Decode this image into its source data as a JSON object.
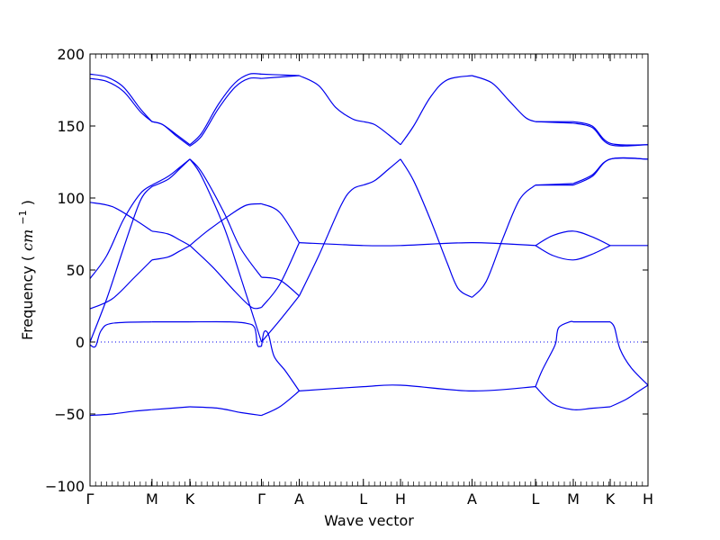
{
  "chart_data": {
    "type": "line",
    "title": "",
    "xlabel": "Wave vector",
    "ylabel": "Frequency",
    "ylabel_unit": "cm",
    "ylabel_unit_exp": "−1",
    "ylim": [
      -100,
      200
    ],
    "yticks": [
      -100,
      -50,
      0,
      50,
      100,
      150,
      200
    ],
    "ytick_labels": [
      "−100",
      "−50",
      "0",
      "50",
      "100",
      "150",
      "200"
    ],
    "xlim": [
      0,
      1.0
    ],
    "xticks": [
      {
        "label": "Γ",
        "x": 0.0
      },
      {
        "label": "M",
        "x": 0.1111
      },
      {
        "label": "K",
        "x": 0.179
      },
      {
        "label": "Γ",
        "x": 0.3073
      },
      {
        "label": "A",
        "x": 0.375
      },
      {
        "label": "L",
        "x": 0.4899
      },
      {
        "label": "H",
        "x": 0.5565
      },
      {
        "label": "A",
        "x": 0.6847
      },
      {
        "label": "L",
        "x": 0.7984
      },
      {
        "label": "M",
        "x": 0.8661
      },
      {
        "label": "K",
        "x": 0.9323
      },
      {
        "label": "H",
        "x": 1.0
      }
    ],
    "zero_line": true,
    "line_color": "#0000ee",
    "series": [
      {
        "segments": [
          [
            [
              0,
              186
            ],
            [
              0.03,
              184
            ],
            [
              0.06,
              177
            ],
            [
              0.09,
              162
            ],
            [
              0.1111,
              153
            ]
          ],
          [
            [
              0.1111,
              153
            ],
            [
              0.13,
              151
            ],
            [
              0.155,
              144
            ],
            [
              0.179,
              137
            ]
          ],
          [
            [
              0.179,
              137
            ],
            [
              0.2,
              145
            ],
            [
              0.23,
              165
            ],
            [
              0.26,
              180
            ],
            [
              0.285,
              186
            ],
            [
              0.3073,
              186
            ]
          ],
          [
            [
              0.3073,
              186
            ],
            [
              0.34,
              185.5
            ],
            [
              0.375,
              185
            ]
          ],
          [
            [
              0.375,
              185
            ],
            [
              0.41,
              178
            ],
            [
              0.44,
              163
            ],
            [
              0.47,
              155
            ],
            [
              0.4899,
              153
            ]
          ],
          [
            [
              0.4899,
              153
            ],
            [
              0.51,
              151
            ],
            [
              0.535,
              144
            ],
            [
              0.5565,
              137
            ]
          ],
          [
            [
              0.5565,
              137
            ],
            [
              0.58,
              150
            ],
            [
              0.61,
              170
            ],
            [
              0.64,
              182
            ],
            [
              0.6847,
              185
            ]
          ],
          [
            [
              0.6847,
              185
            ],
            [
              0.72,
              180
            ],
            [
              0.75,
              168
            ],
            [
              0.78,
              156
            ],
            [
              0.7984,
              153
            ]
          ],
          [
            [
              0.7984,
              153
            ],
            [
              0.8661,
              153
            ]
          ],
          [
            [
              0.8661,
              153
            ],
            [
              0.9,
              150
            ],
            [
              0.9323,
              138
            ],
            [
              1.0,
              137
            ]
          ]
        ]
      },
      {
        "segments": [
          [
            [
              0,
              183
            ],
            [
              0.03,
              181
            ],
            [
              0.06,
              174
            ],
            [
              0.09,
              160
            ],
            [
              0.1111,
              153
            ]
          ],
          [
            [
              0.1111,
              153
            ],
            [
              0.13,
              151
            ],
            [
              0.155,
              143
            ],
            [
              0.179,
              136
            ]
          ],
          [
            [
              0.179,
              136
            ],
            [
              0.2,
              143
            ],
            [
              0.23,
              162
            ],
            [
              0.26,
              177
            ],
            [
              0.285,
              183
            ],
            [
              0.3073,
              183
            ]
          ],
          [
            [
              0.3073,
              183
            ],
            [
              0.34,
              184
            ],
            [
              0.375,
              185
            ]
          ],
          [
            [
              0.7984,
              153
            ],
            [
              0.8661,
              152
            ]
          ],
          [
            [
              0.8661,
              152
            ],
            [
              0.9,
              149
            ],
            [
              0.9323,
              137
            ],
            [
              1.0,
              137
            ]
          ]
        ]
      },
      {
        "segments": [
          [
            [
              0,
              44
            ],
            [
              0.03,
              60
            ],
            [
              0.06,
              85
            ],
            [
              0.09,
              103
            ],
            [
              0.1111,
              109
            ]
          ],
          [
            [
              0.1111,
              109
            ],
            [
              0.14,
              115
            ],
            [
              0.16,
              121
            ],
            [
              0.179,
              127
            ]
          ],
          [
            [
              0.179,
              127
            ],
            [
              0.2,
              118
            ],
            [
              0.24,
              90
            ],
            [
              0.27,
              65
            ],
            [
              0.3073,
              45
            ]
          ],
          [
            [
              0.3073,
              45
            ],
            [
              0.34,
              43
            ],
            [
              0.375,
              32
            ]
          ],
          [
            [
              0.375,
              32
            ],
            [
              0.41,
              60
            ],
            [
              0.45,
              95
            ],
            [
              0.47,
              106
            ],
            [
              0.4899,
              109
            ]
          ],
          [
            [
              0.4899,
              109
            ],
            [
              0.51,
              112
            ],
            [
              0.535,
              120
            ],
            [
              0.5565,
              127
            ]
          ],
          [
            [
              0.5565,
              127
            ],
            [
              0.58,
              112
            ],
            [
              0.61,
              85
            ],
            [
              0.64,
              55
            ],
            [
              0.66,
              37
            ],
            [
              0.6847,
              31
            ]
          ],
          [
            [
              0.6847,
              31
            ],
            [
              0.71,
              42
            ],
            [
              0.74,
              72
            ],
            [
              0.77,
              99
            ],
            [
              0.7984,
              109
            ]
          ],
          [
            [
              0.7984,
              109
            ],
            [
              0.8661,
              109
            ]
          ],
          [
            [
              0.8661,
              109
            ],
            [
              0.9,
              115
            ],
            [
              0.9323,
              127
            ],
            [
              1.0,
              127
            ]
          ]
        ]
      },
      {
        "segments": [
          [
            [
              0,
              0
            ],
            [
              0.03,
              30
            ],
            [
              0.06,
              65
            ],
            [
              0.09,
              98
            ],
            [
              0.1111,
              108
            ]
          ],
          [
            [
              0.1111,
              108
            ],
            [
              0.14,
              113
            ],
            [
              0.16,
              120
            ],
            [
              0.179,
              127
            ]
          ],
          [
            [
              0.179,
              127
            ],
            [
              0.2,
              115
            ],
            [
              0.24,
              80
            ],
            [
              0.27,
              45
            ],
            [
              0.3073,
              0
            ]
          ],
          [
            [
              0.3073,
              0
            ],
            [
              0.34,
              15
            ],
            [
              0.375,
              32
            ]
          ],
          [
            [
              0.7984,
              109
            ],
            [
              0.8661,
              110
            ]
          ],
          [
            [
              0.8661,
              110
            ],
            [
              0.9,
              116
            ],
            [
              0.9323,
              127
            ],
            [
              1.0,
              127
            ]
          ]
        ]
      },
      {
        "segments": [
          [
            [
              0,
              97
            ],
            [
              0.04,
              94
            ],
            [
              0.08,
              85
            ],
            [
              0.1111,
              77
            ]
          ],
          [
            [
              0.1111,
              77
            ],
            [
              0.14,
              75
            ],
            [
              0.16,
              71
            ],
            [
              0.179,
              67
            ]
          ],
          [
            [
              0.179,
              67
            ],
            [
              0.21,
              77
            ],
            [
              0.25,
              88
            ],
            [
              0.28,
              95
            ],
            [
              0.3073,
              96
            ]
          ],
          [
            [
              0.3073,
              96
            ],
            [
              0.34,
              90
            ],
            [
              0.375,
              69
            ]
          ],
          [
            [
              0.375,
              69
            ],
            [
              0.4899,
              67
            ],
            [
              0.5565,
              67
            ],
            [
              0.6847,
              69
            ],
            [
              0.7984,
              67
            ]
          ],
          [
            [
              0.7984,
              67
            ],
            [
              0.83,
              74
            ],
            [
              0.8661,
              77
            ],
            [
              0.9,
              73
            ],
            [
              0.9323,
              67
            ]
          ],
          [
            [
              0.9323,
              67
            ],
            [
              1.0,
              67
            ]
          ]
        ]
      },
      {
        "segments": [
          [
            [
              0,
              23
            ],
            [
              0.04,
              30
            ],
            [
              0.08,
              45
            ],
            [
              0.1111,
              57
            ]
          ],
          [
            [
              0.1111,
              57
            ],
            [
              0.14,
              59
            ],
            [
              0.16,
              63
            ],
            [
              0.179,
              67
            ]
          ],
          [
            [
              0.179,
              67
            ],
            [
              0.22,
              52
            ],
            [
              0.26,
              35
            ],
            [
              0.29,
              24
            ],
            [
              0.3073,
              24
            ]
          ],
          [
            [
              0.3073,
              24
            ],
            [
              0.34,
              40
            ],
            [
              0.375,
              69
            ]
          ],
          [
            [
              0.7984,
              67
            ],
            [
              0.83,
              60
            ],
            [
              0.8661,
              57
            ],
            [
              0.9,
              61
            ],
            [
              0.9323,
              67
            ]
          ]
        ]
      },
      {
        "segments": [
          [
            [
              0,
              -2
            ],
            [
              0.01,
              -3
            ],
            [
              0.02,
              8
            ],
            [
              0.04,
              13
            ],
            [
              0.1111,
              14
            ]
          ],
          [
            [
              0.1111,
              14
            ],
            [
              0.179,
              14
            ]
          ],
          [
            [
              0.179,
              14
            ],
            [
              0.25,
              14
            ],
            [
              0.28,
              13
            ],
            [
              0.295,
              10
            ],
            [
              0.3,
              -2
            ],
            [
              0.305,
              -3
            ],
            [
              0.3073,
              -3
            ]
          ],
          [
            [
              0.3073,
              -3
            ],
            [
              0.312,
              7
            ],
            [
              0.32,
              5
            ],
            [
              0.33,
              -10
            ],
            [
              0.35,
              -20
            ],
            [
              0.375,
              -34
            ]
          ],
          [
            [
              0.375,
              -34
            ],
            [
              0.4899,
              -31
            ],
            [
              0.5565,
              -30
            ],
            [
              0.6847,
              -34
            ],
            [
              0.7984,
              -31
            ]
          ],
          [
            [
              0.7984,
              -31
            ],
            [
              0.81,
              -20
            ],
            [
              0.83,
              -5
            ],
            [
              0.835,
              0
            ],
            [
              0.84,
              10
            ],
            [
              0.86,
              14
            ],
            [
              0.8661,
              14
            ]
          ],
          [
            [
              0.8661,
              14
            ],
            [
              0.9323,
              14
            ]
          ],
          [
            [
              0.9323,
              14
            ],
            [
              0.94,
              10
            ],
            [
              0.95,
              -5
            ],
            [
              0.97,
              -18
            ],
            [
              1.0,
              -30
            ]
          ]
        ]
      },
      {
        "segments": [
          [
            [
              0,
              -51
            ],
            [
              0.04,
              -50
            ],
            [
              0.08,
              -48
            ],
            [
              0.1111,
              -47
            ]
          ],
          [
            [
              0.1111,
              -47
            ],
            [
              0.179,
              -45
            ]
          ],
          [
            [
              0.179,
              -45
            ],
            [
              0.23,
              -46
            ],
            [
              0.27,
              -49
            ],
            [
              0.3073,
              -51
            ]
          ],
          [
            [
              0.3073,
              -51
            ],
            [
              0.34,
              -45
            ],
            [
              0.375,
              -34
            ]
          ],
          [
            [
              0.7984,
              -31
            ],
            [
              0.83,
              -43
            ],
            [
              0.8661,
              -47
            ],
            [
              0.9,
              -46
            ],
            [
              0.9323,
              -45
            ]
          ],
          [
            [
              0.9323,
              -45
            ],
            [
              0.96,
              -40
            ],
            [
              0.98,
              -35
            ],
            [
              1.0,
              -30
            ]
          ]
        ]
      }
    ]
  }
}
